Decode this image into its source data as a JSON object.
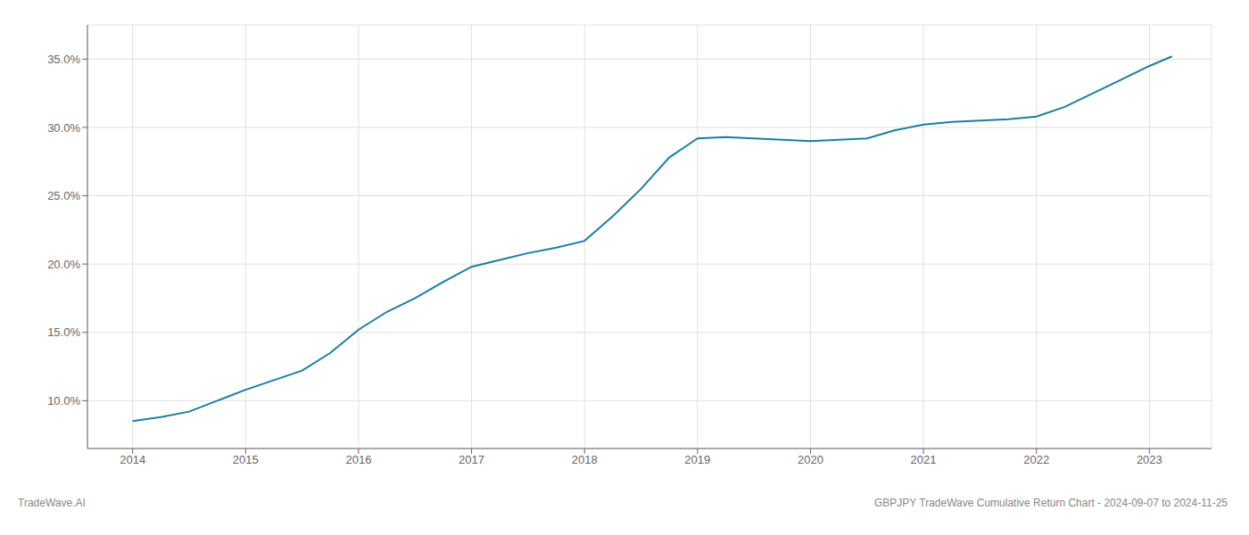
{
  "chart_data": {
    "type": "line",
    "x": [
      2014.0,
      2014.25,
      2014.5,
      2014.75,
      2015.0,
      2015.25,
      2015.5,
      2015.75,
      2016.0,
      2016.25,
      2016.5,
      2016.75,
      2017.0,
      2017.25,
      2017.5,
      2017.75,
      2018.0,
      2018.25,
      2018.5,
      2018.75,
      2019.0,
      2019.25,
      2019.5,
      2019.75,
      2020.0,
      2020.25,
      2020.5,
      2020.75,
      2021.0,
      2021.25,
      2021.5,
      2021.75,
      2022.0,
      2022.25,
      2022.5,
      2022.75,
      2023.0,
      2023.2
    ],
    "values": [
      8.5,
      8.8,
      9.2,
      10.0,
      10.8,
      11.5,
      12.2,
      13.5,
      15.2,
      16.5,
      17.5,
      18.7,
      19.8,
      20.3,
      20.8,
      21.2,
      21.7,
      23.5,
      25.5,
      27.8,
      29.2,
      29.3,
      29.2,
      29.1,
      29.0,
      29.1,
      29.2,
      29.8,
      30.2,
      30.4,
      30.5,
      30.6,
      30.8,
      31.5,
      32.5,
      33.5,
      34.5,
      35.2
    ],
    "color": "#1a7fa0",
    "xlim": [
      2013.6,
      2023.55
    ],
    "ylim": [
      6.5,
      37.5
    ],
    "xticks": [
      2014,
      2015,
      2016,
      2017,
      2018,
      2019,
      2020,
      2021,
      2022,
      2023
    ],
    "yticks": [
      {
        "value": 10.0,
        "label": "10.0%"
      },
      {
        "value": 15.0,
        "label": "15.0%"
      },
      {
        "value": 20.0,
        "label": "20.0%"
      },
      {
        "value": 25.0,
        "label": "25.0%"
      },
      {
        "value": 30.0,
        "label": "30.0%"
      },
      {
        "value": 35.0,
        "label": "35.0%"
      }
    ],
    "grid": true,
    "annotations": [
      "TradeWave.AI",
      "GBPJPY TradeWave Cumulative Return Chart - 2024-09-07 to 2024-11-25"
    ]
  }
}
